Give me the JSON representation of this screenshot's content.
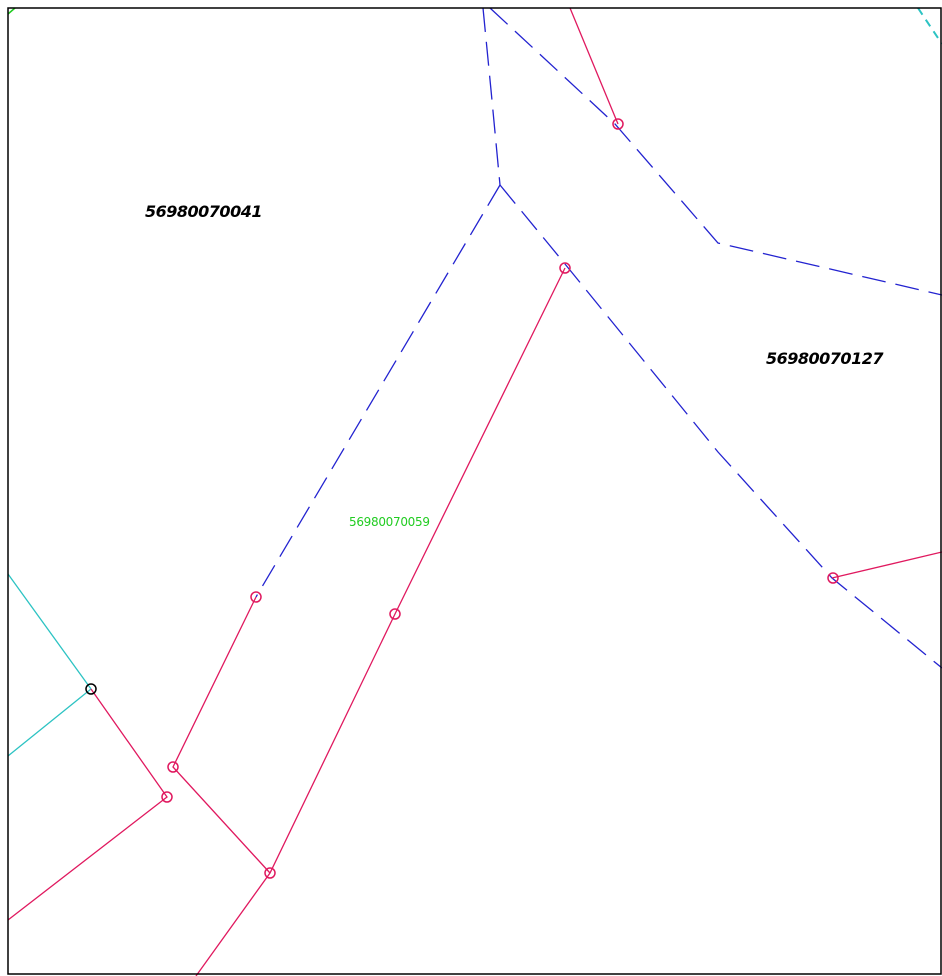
{
  "map": {
    "parcel_labels": {
      "parcel_a": "56980070041",
      "parcel_b": "56980070127",
      "parcel_c": "56980070059"
    },
    "colors": {
      "border": "#000000",
      "blue_dashed": "#2323d0",
      "red_line": "#e0195f",
      "cyan_line": "#2cc3c3",
      "green_label": "#22cc22",
      "vertex_black": "#000000"
    }
  }
}
